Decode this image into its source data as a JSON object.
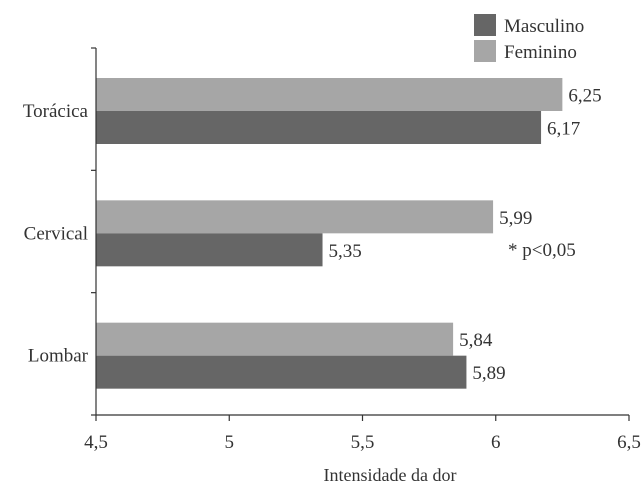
{
  "chart_data": {
    "type": "bar",
    "orientation": "horizontal",
    "categories": [
      "Torácica",
      "Cervical",
      "Lombar"
    ],
    "series": [
      {
        "name": "Masculino",
        "color": "#666666",
        "values": [
          6.17,
          5.35,
          5.89
        ],
        "labels": [
          "6,17",
          "5,35",
          "5,89"
        ]
      },
      {
        "name": "Feminino",
        "color": "#a6a6a6",
        "values": [
          6.25,
          5.99,
          5.84
        ],
        "labels": [
          "6,25",
          "5,99",
          "5,84"
        ]
      }
    ],
    "xlabel": "Intensidade da dor",
    "xlim": [
      4.5,
      6.5
    ],
    "xticks": [
      4.5,
      5,
      5.5,
      6,
      6.5
    ],
    "xtick_labels": [
      "4,5",
      "5",
      "5,5",
      "6",
      "6,5"
    ],
    "annotation": "* p<0,05",
    "legend_position": "top-right",
    "grid": false
  }
}
